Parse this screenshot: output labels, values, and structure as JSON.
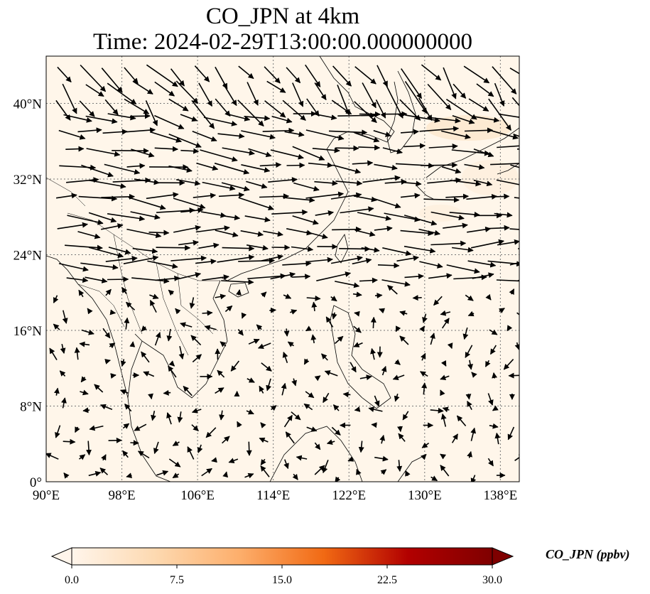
{
  "title": {
    "line1": "CO_JPN at 4km",
    "line2": "Time: 2024-02-29T13:00:00.000000000"
  },
  "map": {
    "lon_range": [
      90,
      140
    ],
    "lat_range": [
      0,
      45
    ],
    "lon_ticks": [
      {
        "value": 90,
        "label": "90°E"
      },
      {
        "value": 98,
        "label": "98°E"
      },
      {
        "value": 106,
        "label": "106°E"
      },
      {
        "value": 114,
        "label": "114°E"
      },
      {
        "value": 122,
        "label": "122°E"
      },
      {
        "value": 130,
        "label": "130°E"
      },
      {
        "value": 138,
        "label": "138°E"
      }
    ],
    "lat_ticks": [
      {
        "value": 0,
        "label": "0°"
      },
      {
        "value": 8,
        "label": "8°N"
      },
      {
        "value": 16,
        "label": "16°N"
      },
      {
        "value": 24,
        "label": "24°N"
      },
      {
        "value": 32,
        "label": "32°N"
      },
      {
        "value": 40,
        "label": "40°N"
      }
    ],
    "gridlines": true,
    "field_color": "#fff5e8"
  },
  "colorbar": {
    "label": "CO_JPN (ppbv)",
    "min": 0.0,
    "max": 30.0,
    "ticks": [
      "0.0",
      "7.5",
      "15.0",
      "22.5",
      "30.0"
    ],
    "colormap": [
      "#fff5eb",
      "#fdd9b0",
      "#fdae6b",
      "#f16913",
      "#b20000",
      "#7f0000"
    ],
    "extend": "both"
  }
}
